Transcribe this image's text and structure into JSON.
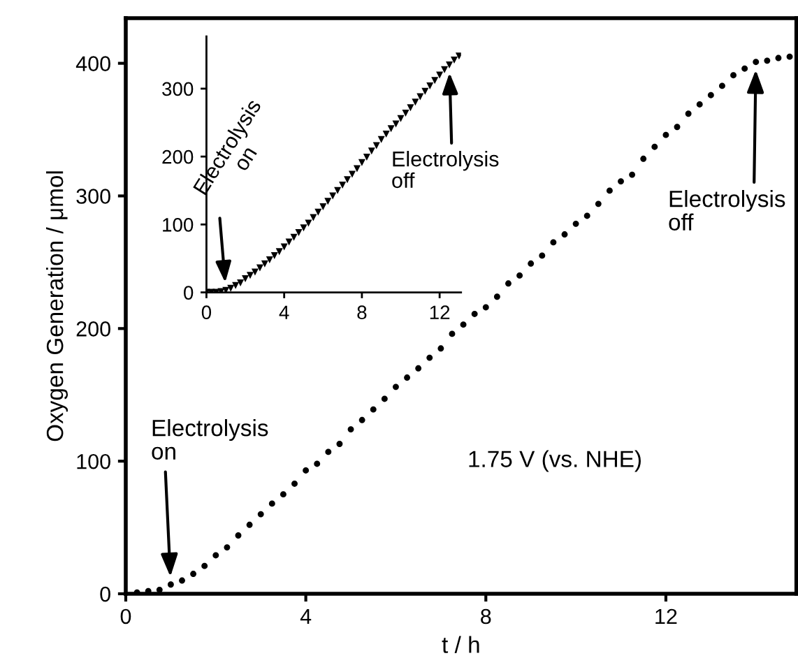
{
  "chart_data": [
    {
      "type": "scatter",
      "xlabel": "t / h",
      "ylabel": "Oxygen Generation / μmol",
      "marker": "circle",
      "grid": false,
      "legend": false,
      "xlim": [
        0,
        14.9
      ],
      "ylim": [
        0,
        434
      ],
      "xticks": [
        0,
        4,
        8,
        12
      ],
      "yticks": [
        0,
        100,
        200,
        300,
        400
      ],
      "series": [
        {
          "color": "#000000",
          "x": [
            0.25,
            0.5,
            0.75,
            1,
            1.25,
            1.5,
            1.75,
            2,
            2.25,
            2.5,
            2.75,
            3,
            3.25,
            3.5,
            3.75,
            4,
            4.25,
            4.5,
            4.75,
            5,
            5.25,
            5.5,
            5.75,
            6,
            6.25,
            6.5,
            6.75,
            7,
            7.25,
            7.5,
            7.75,
            8,
            8.25,
            8.5,
            8.75,
            9,
            9.25,
            9.5,
            9.75,
            10,
            10.25,
            10.5,
            10.75,
            11,
            11.25,
            11.5,
            11.75,
            12,
            12.25,
            12.5,
            12.75,
            13,
            13.25,
            13.5,
            13.75,
            14,
            14.25,
            14.5,
            14.75
          ],
          "values": [
            1,
            2,
            3,
            7,
            10,
            15,
            21,
            29,
            35,
            44,
            52,
            60,
            68,
            75,
            83,
            93,
            98,
            107,
            113,
            124,
            131,
            139,
            147,
            156,
            163,
            170,
            178,
            185,
            196,
            203,
            211,
            216,
            224,
            234,
            240,
            249,
            255,
            265,
            271,
            279,
            285,
            294,
            304,
            311,
            316,
            328,
            337,
            346,
            352,
            362,
            369,
            376,
            383,
            391,
            396,
            401,
            402,
            404,
            405
          ]
        }
      ],
      "annotations": [
        {
          "text": "Electrolysis\non",
          "x": 1,
          "y": 7
        },
        {
          "text": "Electrolysis\noff",
          "x": 14,
          "y": 401
        },
        "1.75 V (vs. NHE)"
      ]
    },
    {
      "type": "scatter",
      "marker": "triangle",
      "grid": false,
      "legend": false,
      "xlim": [
        0,
        13.1
      ],
      "ylim": [
        0,
        377
      ],
      "xticks": [
        0,
        4,
        8,
        12
      ],
      "yticks": [
        0,
        100,
        200,
        300
      ],
      "series": [
        {
          "color": "#000000",
          "x": [
            0,
            0.25,
            0.5,
            0.75,
            1,
            1.25,
            1.5,
            1.75,
            2,
            2.25,
            2.5,
            2.75,
            3,
            3.25,
            3.5,
            3.75,
            4,
            4.25,
            4.5,
            4.75,
            5,
            5.25,
            5.5,
            5.75,
            6,
            6.25,
            6.5,
            6.75,
            7,
            7.25,
            7.5,
            7.75,
            8,
            8.25,
            8.5,
            8.75,
            9,
            9.25,
            9.5,
            9.75,
            10,
            10.25,
            10.5,
            10.75,
            11,
            11.25,
            11.5,
            11.75,
            12,
            12.25,
            12.5,
            12.75,
            13
          ],
          "values": [
            0,
            0,
            0,
            1,
            3,
            6,
            10,
            14,
            20,
            25,
            30,
            36,
            42,
            48,
            54,
            60,
            67,
            74,
            81,
            88,
            95,
            102,
            110,
            118,
            126,
            134,
            142,
            150,
            158,
            166,
            174,
            182,
            191,
            199,
            208,
            216,
            225,
            233,
            241,
            248,
            256,
            264,
            272,
            280,
            288,
            296,
            304,
            312,
            320,
            328,
            335,
            342,
            348
          ]
        }
      ],
      "annotations": [
        {
          "text": "Electrolysis\non",
          "x": 1,
          "y": 3
        },
        {
          "text": "Electrolysis\noff",
          "x": 12.5,
          "y": 335
        }
      ]
    }
  ]
}
